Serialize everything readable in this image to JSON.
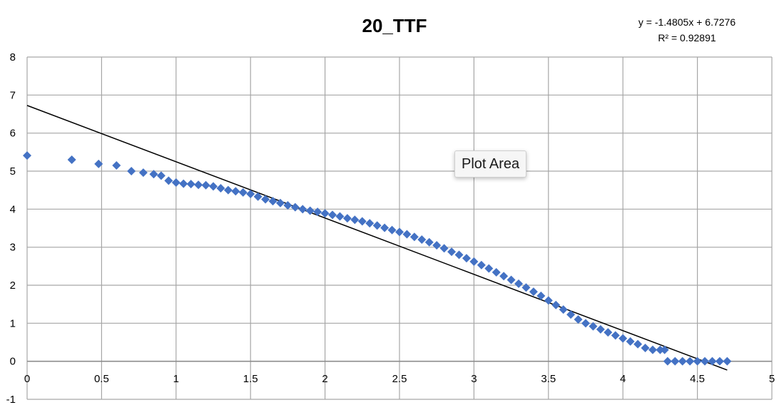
{
  "tooltip": {
    "label": "Plot Area"
  },
  "chart_data": {
    "type": "scatter",
    "title": "20_TTF",
    "xlabel": "",
    "ylabel": "",
    "xlim": [
      0,
      5
    ],
    "ylim": [
      -1,
      8
    ],
    "x_ticks": [
      "0",
      "0.5",
      "1",
      "1.5",
      "2",
      "2.5",
      "3",
      "3.5",
      "4",
      "4.5",
      "5"
    ],
    "y_ticks": [
      "8",
      "7",
      "6",
      "5",
      "4",
      "3",
      "2",
      "1",
      "0",
      "-1"
    ],
    "x_tick_values": [
      0,
      0.5,
      1,
      1.5,
      2,
      2.5,
      3,
      3.5,
      4,
      4.5,
      5
    ],
    "y_tick_values": [
      8,
      7,
      6,
      5,
      4,
      3,
      2,
      1,
      0,
      -1
    ],
    "grid": true,
    "legend": "none",
    "marker": "diamond",
    "colors": {
      "points": "#4472c4",
      "trendline": "#000000",
      "grid": "#a6a6a6"
    },
    "trendline": {
      "type": "linear",
      "slope": -1.4805,
      "intercept": 6.7276,
      "x_range": [
        0,
        4.7
      ],
      "equation_label": "y = -1.4805x + 6.7276",
      "r2_label": "R² = 0.92891"
    },
    "points": [
      [
        0.0,
        5.41
      ],
      [
        0.3,
        5.3
      ],
      [
        0.48,
        5.19
      ],
      [
        0.6,
        5.15
      ],
      [
        0.7,
        5.0
      ],
      [
        0.78,
        4.96
      ],
      [
        0.85,
        4.92
      ],
      [
        0.9,
        4.88
      ],
      [
        0.95,
        4.75
      ],
      [
        1.0,
        4.7
      ],
      [
        1.05,
        4.67
      ],
      [
        1.1,
        4.66
      ],
      [
        1.15,
        4.64
      ],
      [
        1.2,
        4.63
      ],
      [
        1.25,
        4.6
      ],
      [
        1.3,
        4.55
      ],
      [
        1.35,
        4.5
      ],
      [
        1.4,
        4.47
      ],
      [
        1.45,
        4.44
      ],
      [
        1.5,
        4.4
      ],
      [
        1.55,
        4.33
      ],
      [
        1.6,
        4.26
      ],
      [
        1.65,
        4.21
      ],
      [
        1.7,
        4.16
      ],
      [
        1.75,
        4.1
      ],
      [
        1.8,
        4.05
      ],
      [
        1.85,
        4.0
      ],
      [
        1.9,
        3.96
      ],
      [
        1.95,
        3.93
      ],
      [
        2.0,
        3.89
      ],
      [
        2.05,
        3.85
      ],
      [
        2.1,
        3.81
      ],
      [
        2.15,
        3.76
      ],
      [
        2.2,
        3.72
      ],
      [
        2.25,
        3.68
      ],
      [
        2.3,
        3.63
      ],
      [
        2.35,
        3.57
      ],
      [
        2.4,
        3.51
      ],
      [
        2.45,
        3.45
      ],
      [
        2.5,
        3.4
      ],
      [
        2.55,
        3.34
      ],
      [
        2.6,
        3.27
      ],
      [
        2.65,
        3.2
      ],
      [
        2.7,
        3.13
      ],
      [
        2.75,
        3.05
      ],
      [
        2.8,
        2.97
      ],
      [
        2.85,
        2.88
      ],
      [
        2.9,
        2.8
      ],
      [
        2.95,
        2.71
      ],
      [
        3.0,
        2.62
      ],
      [
        3.05,
        2.53
      ],
      [
        3.1,
        2.44
      ],
      [
        3.15,
        2.34
      ],
      [
        3.2,
        2.24
      ],
      [
        3.25,
        2.14
      ],
      [
        3.3,
        2.04
      ],
      [
        3.35,
        1.94
      ],
      [
        3.4,
        1.83
      ],
      [
        3.45,
        1.72
      ],
      [
        3.5,
        1.6
      ],
      [
        3.55,
        1.48
      ],
      [
        3.6,
        1.36
      ],
      [
        3.65,
        1.23
      ],
      [
        3.7,
        1.1
      ],
      [
        3.75,
        1.0
      ],
      [
        3.8,
        0.92
      ],
      [
        3.85,
        0.84
      ],
      [
        3.9,
        0.76
      ],
      [
        3.95,
        0.68
      ],
      [
        4.0,
        0.6
      ],
      [
        4.05,
        0.52
      ],
      [
        4.1,
        0.45
      ],
      [
        4.15,
        0.35
      ],
      [
        4.2,
        0.3
      ],
      [
        4.25,
        0.3
      ],
      [
        4.28,
        0.3
      ],
      [
        4.3,
        0.0
      ],
      [
        4.35,
        0.0
      ],
      [
        4.4,
        0.0
      ],
      [
        4.45,
        0.0
      ],
      [
        4.5,
        0.0
      ],
      [
        4.55,
        0.0
      ],
      [
        4.6,
        0.0
      ],
      [
        4.65,
        0.0
      ],
      [
        4.7,
        0.0
      ]
    ]
  }
}
